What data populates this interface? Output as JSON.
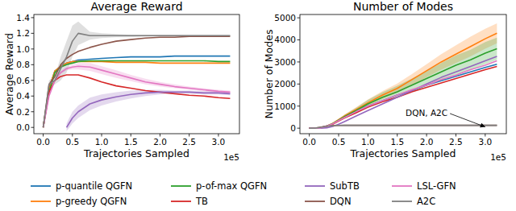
{
  "chart_data": [
    {
      "type": "line",
      "title": "Average Reward",
      "x_label": "Trajectories Sampled",
      "y_label": "Average Reward",
      "x_offset_text": "1e5",
      "grid": false,
      "legend": "bottom",
      "xlim": [
        -0.16,
        3.36
      ],
      "ylim": [
        -0.08,
        1.44
      ],
      "xticks": [
        {
          "value": 0,
          "label": "0.0"
        },
        {
          "value": 0.5,
          "label": "0.5"
        },
        {
          "value": 1,
          "label": "1.0"
        },
        {
          "value": 1.5,
          "label": "1.5"
        },
        {
          "value": 2,
          "label": "2.0"
        },
        {
          "value": 2.5,
          "label": "2.5"
        },
        {
          "value": 3,
          "label": "3.0"
        }
      ],
      "yticks": [
        {
          "value": 0,
          "label": "0.0"
        },
        0.2,
        0.4,
        0.6,
        0.8,
        {
          "value": 1,
          "label": "1.0"
        },
        1.2,
        1.4
      ],
      "x": [
        0,
        0.1,
        0.2,
        0.3,
        0.4,
        0.5,
        0.6,
        0.8,
        1.0,
        1.25,
        1.5,
        1.75,
        2.0,
        2.25,
        2.5,
        2.75,
        3.0,
        3.2
      ],
      "series": [
        {
          "name": "p-quantile QGFN",
          "color": "#1f77b4",
          "values": [
            0.0,
            0.5,
            0.72,
            0.78,
            0.82,
            0.84,
            0.86,
            0.87,
            0.88,
            0.89,
            0.9,
            0.9,
            0.9,
            0.91,
            0.91,
            0.91,
            0.91,
            0.91
          ]
        },
        {
          "name": "p-greedy QGFN",
          "color": "#ff7f0e",
          "values": [
            0.0,
            0.5,
            0.72,
            0.78,
            0.82,
            0.84,
            0.84,
            0.84,
            0.84,
            0.83,
            0.83,
            0.83,
            0.82,
            0.82,
            0.82,
            0.82,
            0.82,
            0.82
          ]
        },
        {
          "name": "p-of-max QGFN",
          "color": "#2ca02c",
          "values": [
            0.0,
            0.45,
            0.7,
            0.77,
            0.8,
            0.82,
            0.84,
            0.85,
            0.85,
            0.85,
            0.85,
            0.85,
            0.85,
            0.85,
            0.85,
            0.85,
            0.84,
            0.84
          ]
        },
        {
          "name": "TB",
          "color": "#d62728",
          "values": [
            0.0,
            0.45,
            0.6,
            0.65,
            0.67,
            0.67,
            0.67,
            0.63,
            0.58,
            0.53,
            0.5,
            0.47,
            0.45,
            0.43,
            0.41,
            0.4,
            0.38,
            0.37
          ]
        },
        {
          "name": "SubTB",
          "color": "#9467bd",
          "values": [
            null,
            null,
            null,
            null,
            0.0,
            0.12,
            0.2,
            0.3,
            0.35,
            0.39,
            0.42,
            0.44,
            0.45,
            0.45,
            0.45,
            0.44,
            0.44,
            0.43
          ],
          "lower": [
            null,
            null,
            null,
            null,
            -0.05,
            0.05,
            0.12,
            0.22,
            0.28,
            0.33,
            0.37,
            0.4,
            0.42,
            0.43,
            0.43,
            0.42,
            0.42,
            0.41
          ],
          "upper": [
            null,
            null,
            null,
            null,
            0.05,
            0.2,
            0.28,
            0.38,
            0.42,
            0.45,
            0.47,
            0.48,
            0.48,
            0.47,
            0.47,
            0.46,
            0.46,
            0.45
          ]
        },
        {
          "name": "DQN",
          "color": "#8c564b",
          "values": [
            0.0,
            0.55,
            0.65,
            0.8,
            0.88,
            0.93,
            0.97,
            1.02,
            1.06,
            1.1,
            1.12,
            1.14,
            1.15,
            1.15,
            1.16,
            1.16,
            1.16,
            1.16
          ]
        },
        {
          "name": "LSL-GFN",
          "color": "#e377c2",
          "values": [
            0.0,
            0.4,
            0.6,
            0.7,
            0.75,
            0.77,
            0.78,
            0.77,
            0.73,
            0.68,
            0.63,
            0.58,
            0.55,
            0.52,
            0.5,
            0.48,
            0.46,
            0.45
          ],
          "lower": [
            0.0,
            0.4,
            0.58,
            0.68,
            0.73,
            0.74,
            0.74,
            0.72,
            0.68,
            0.63,
            0.59,
            0.55,
            0.52,
            0.5,
            0.48,
            0.46,
            0.44,
            0.43
          ],
          "upper": [
            0.0,
            0.4,
            0.62,
            0.72,
            0.77,
            0.8,
            0.82,
            0.82,
            0.78,
            0.73,
            0.67,
            0.62,
            0.58,
            0.55,
            0.52,
            0.5,
            0.48,
            0.47
          ]
        },
        {
          "name": "A2C",
          "color": "#7f7f7f",
          "values": [
            0.0,
            0.55,
            0.6,
            0.75,
            0.9,
            1.1,
            1.2,
            1.17,
            1.17,
            1.17,
            1.17,
            1.17,
            1.17,
            1.17,
            1.17,
            1.17,
            1.17,
            1.17
          ],
          "lower": [
            0.0,
            0.5,
            0.55,
            0.6,
            0.7,
            0.9,
            1.05,
            1.12,
            1.14,
            1.15,
            1.15,
            1.16,
            1.16,
            1.16,
            1.16,
            1.16,
            1.16,
            1.16
          ],
          "upper": [
            0.0,
            0.6,
            0.65,
            0.9,
            1.1,
            1.3,
            1.35,
            1.22,
            1.2,
            1.19,
            1.18,
            1.18,
            1.18,
            1.18,
            1.18,
            1.18,
            1.18,
            1.18
          ]
        }
      ]
    },
    {
      "type": "line",
      "title": "Number of Modes",
      "x_label": "Trajectories Sampled",
      "y_label": "Number of Modes",
      "x_offset_text": "1e5",
      "grid": false,
      "xlim": [
        -0.16,
        3.36
      ],
      "ylim": [
        -250,
        5150
      ],
      "xticks": [
        {
          "value": 0,
          "label": "0.0"
        },
        {
          "value": 0.5,
          "label": "0.5"
        },
        {
          "value": 1,
          "label": "1.0"
        },
        {
          "value": 1.5,
          "label": "1.5"
        },
        {
          "value": 2,
          "label": "2.0"
        },
        {
          "value": 2.5,
          "label": "2.5"
        },
        {
          "value": 3,
          "label": "3.0"
        }
      ],
      "yticks": [
        0,
        1000,
        2000,
        3000,
        4000,
        5000
      ],
      "x": [
        0,
        0.1,
        0.2,
        0.3,
        0.4,
        0.5,
        0.6,
        0.8,
        1.0,
        1.25,
        1.5,
        1.75,
        2.0,
        2.25,
        2.5,
        2.75,
        3.0,
        3.2
      ],
      "annotations": [
        {
          "text": "DQN, A2C"
        }
      ],
      "series": [
        {
          "name": "p-quantile QGFN",
          "color": "#1f77b4",
          "values": [
            0,
            0,
            20,
            100,
            200,
            350,
            500,
            750,
            1000,
            1250,
            1500,
            1700,
            1950,
            2150,
            2350,
            2550,
            2750,
            2900
          ]
        },
        {
          "name": "p-greedy QGFN",
          "color": "#ff7f0e",
          "values": [
            0,
            0,
            20,
            100,
            220,
            380,
            550,
            850,
            1150,
            1500,
            1800,
            2200,
            2600,
            3000,
            3350,
            3700,
            4050,
            4300
          ],
          "lower": [
            0,
            0,
            15,
            80,
            190,
            330,
            480,
            750,
            1000,
            1330,
            1600,
            1950,
            2300,
            2650,
            2950,
            3250,
            3600,
            3850
          ],
          "upper": [
            0,
            0,
            25,
            120,
            250,
            430,
            620,
            950,
            1300,
            1680,
            2020,
            2450,
            2900,
            3350,
            3750,
            4150,
            4500,
            4750
          ]
        },
        {
          "name": "p-of-max QGFN",
          "color": "#2ca02c",
          "values": [
            0,
            0,
            20,
            100,
            210,
            360,
            520,
            800,
            1100,
            1400,
            1650,
            1950,
            2250,
            2550,
            2850,
            3100,
            3400,
            3600
          ],
          "lower": [
            0,
            0,
            15,
            80,
            170,
            300,
            430,
            670,
            920,
            1170,
            1380,
            1650,
            1900,
            2150,
            2400,
            2650,
            2900,
            3100
          ],
          "upper": [
            0,
            0,
            25,
            120,
            250,
            420,
            610,
            930,
            1280,
            1630,
            1920,
            2250,
            2600,
            2950,
            3300,
            3550,
            3900,
            4100
          ]
        },
        {
          "name": "TB",
          "color": "#d62728",
          "values": [
            0,
            0,
            20,
            90,
            180,
            320,
            460,
            700,
            950,
            1200,
            1400,
            1650,
            1850,
            2050,
            2250,
            2450,
            2650,
            2800
          ]
        },
        {
          "name": "SubTB",
          "color": "#9467bd",
          "values": [
            0,
            0,
            0,
            20,
            80,
            180,
            300,
            550,
            800,
            1100,
            1400,
            1700,
            2000,
            2300,
            2550,
            2800,
            3050,
            3250
          ]
        },
        {
          "name": "DQN",
          "color": "#8c564b",
          "values": [
            0,
            0,
            50,
            100,
            120,
            125,
            130,
            130,
            130,
            130,
            130,
            130,
            130,
            130,
            130,
            130,
            130,
            130
          ]
        },
        {
          "name": "LSL-GFN",
          "color": "#e377c2",
          "values": [
            0,
            0,
            20,
            100,
            200,
            340,
            480,
            750,
            1000,
            1250,
            1500,
            1750,
            1950,
            2200,
            2400,
            2650,
            2850,
            3050
          ]
        },
        {
          "name": "A2C",
          "color": "#7f7f7f",
          "values": [
            0,
            0,
            40,
            90,
            115,
            125,
            130,
            130,
            130,
            130,
            130,
            130,
            130,
            130,
            130,
            130,
            130,
            130
          ]
        }
      ]
    }
  ]
}
